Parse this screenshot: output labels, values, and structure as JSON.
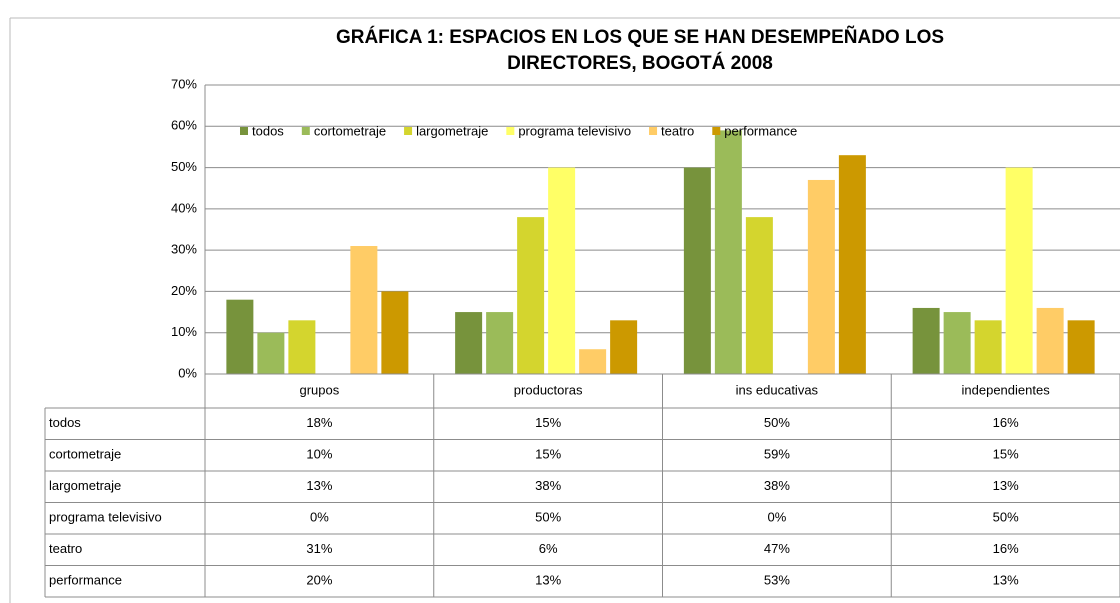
{
  "chart_data": {
    "type": "bar",
    "title": [
      "GRÁFICA 1: ESPACIOS EN LOS QUE SE HAN DESEMPEÑADO LOS",
      "DIRECTORES,  BOGOTÁ 2008"
    ],
    "categories": [
      "grupos",
      "productoras",
      "ins educativas",
      "independientes"
    ],
    "series": [
      {
        "name": "todos",
        "color": "#77933c",
        "values": [
          18,
          15,
          50,
          16
        ],
        "value_labels": [
          "18%",
          "15%",
          "50%",
          "16%"
        ]
      },
      {
        "name": "cortometraje",
        "color": "#9bbb59",
        "values": [
          10,
          15,
          59,
          15
        ],
        "value_labels": [
          "10%",
          "15%",
          "59%",
          "15%"
        ]
      },
      {
        "name": "largometraje",
        "color": "#d4d52e",
        "values": [
          13,
          38,
          38,
          13
        ],
        "value_labels": [
          "13%",
          "38%",
          "38%",
          "13%"
        ]
      },
      {
        "name": "programa televisivo",
        "color": "#ffff66",
        "values": [
          0,
          50,
          0,
          50
        ],
        "value_labels": [
          "0%",
          "50%",
          "0%",
          "50%"
        ]
      },
      {
        "name": "teatro",
        "color": "#ffcc66",
        "values": [
          31,
          6,
          47,
          16
        ],
        "value_labels": [
          "31%",
          "6%",
          "47%",
          "16%"
        ]
      },
      {
        "name": "performance",
        "color": "#cc9900",
        "values": [
          20,
          13,
          53,
          13
        ],
        "value_labels": [
          "20%",
          "13%",
          "53%",
          "13%"
        ]
      }
    ],
    "ylim": [
      0,
      70
    ],
    "yticks": [
      {
        "value": 0,
        "label": "0%"
      },
      {
        "value": 10,
        "label": "10%"
      },
      {
        "value": 20,
        "label": "20%"
      },
      {
        "value": 30,
        "label": "30%"
      },
      {
        "value": 40,
        "label": "40%"
      },
      {
        "value": 50,
        "label": "50%"
      },
      {
        "value": 60,
        "label": "60%"
      },
      {
        "value": 70,
        "label": "70%"
      }
    ],
    "grid": true,
    "legend": "top"
  }
}
